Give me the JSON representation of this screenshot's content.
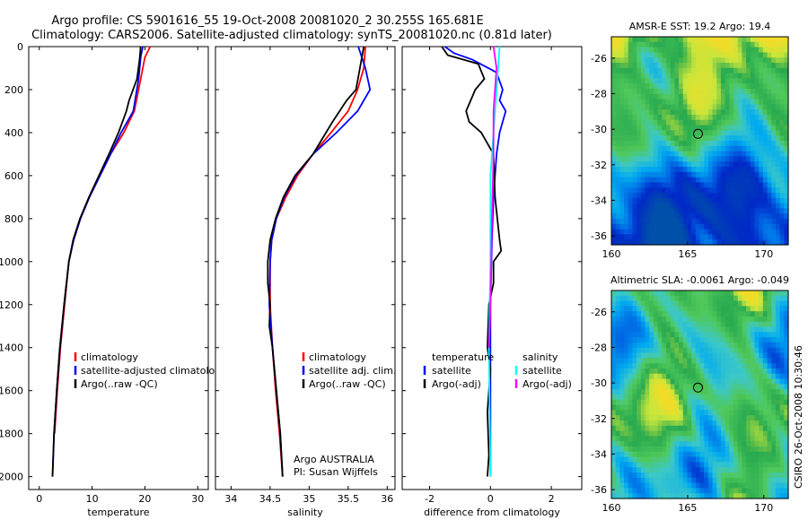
{
  "title": {
    "line1": "Argo profile: CS 5901616_55 19-Oct-2008 20081020_2 30.255S 165.681E",
    "line2": "Climatology: CARS2006. Satellite-adjusted climatology: synTS_20081020.nc (0.81d later)"
  },
  "colors": {
    "red": "#ff0000",
    "blue": "#0000ff",
    "black": "#000000",
    "cyan": "#00ffff",
    "magenta": "#ff00ff"
  },
  "chart_data": [
    {
      "type": "line",
      "name": "temperature",
      "xlabel": "temperature",
      "xlim": [
        -2,
        32
      ],
      "ylim": [
        2060,
        0
      ],
      "xticks": [
        0,
        10,
        20,
        30
      ],
      "yticks": [
        0,
        200,
        400,
        600,
        800,
        1000,
        1200,
        1400,
        1600,
        1800,
        2000
      ],
      "legend": [
        "climatology",
        "satellite-adjusted climatology",
        "Argo(..raw -QC)"
      ],
      "series": [
        {
          "name": "climatology",
          "color": "red",
          "points": [
            [
              21,
              0
            ],
            [
              20,
              50
            ],
            [
              19.2,
              150
            ],
            [
              18,
              300
            ],
            [
              16,
              400
            ],
            [
              13.5,
              500
            ],
            [
              11.5,
              600
            ],
            [
              9.5,
              700
            ],
            [
              7.8,
              800
            ],
            [
              6.5,
              900
            ],
            [
              5.6,
              1000
            ],
            [
              4.8,
              1200
            ],
            [
              4.0,
              1400
            ],
            [
              3.4,
              1600
            ],
            [
              2.9,
              1800
            ]
          ]
        },
        {
          "name": "satellite-adjusted climatology",
          "color": "blue",
          "points": [
            [
              19.6,
              0
            ],
            [
              19.2,
              50
            ],
            [
              18.8,
              150
            ],
            [
              17.8,
              300
            ],
            [
              15.5,
              400
            ],
            [
              13.5,
              500
            ],
            [
              11.5,
              600
            ],
            [
              9.5,
              700
            ],
            [
              7.8,
              800
            ],
            [
              6.5,
              900
            ],
            [
              5.6,
              1000
            ],
            [
              4.7,
              1200
            ],
            [
              3.9,
              1400
            ],
            [
              3.3,
              1600
            ],
            [
              2.8,
              1800
            ],
            [
              2.5,
              2000
            ]
          ]
        },
        {
          "name": "Argo(..raw -QC)",
          "color": "black",
          "points": [
            [
              19.2,
              0
            ],
            [
              19.0,
              60
            ],
            [
              18.5,
              150
            ],
            [
              17.0,
              250
            ],
            [
              16.5,
              300
            ],
            [
              15.0,
              400
            ],
            [
              13.2,
              500
            ],
            [
              11.3,
              600
            ],
            [
              9.4,
              700
            ],
            [
              7.7,
              800
            ],
            [
              6.4,
              900
            ],
            [
              5.6,
              1000
            ],
            [
              4.7,
              1200
            ],
            [
              3.9,
              1400
            ],
            [
              3.3,
              1600
            ],
            [
              2.8,
              1800
            ],
            [
              2.5,
              2000
            ]
          ]
        }
      ]
    },
    {
      "type": "line",
      "name": "salinity",
      "xlabel": "salinity",
      "xlim": [
        33.8,
        36.1
      ],
      "ylim": [
        2060,
        0
      ],
      "xticks": [
        34,
        34.5,
        35,
        35.5,
        36
      ],
      "legend": [
        "climatology",
        "satellite adj. clim.",
        "Argo(..raw -QC)"
      ],
      "series": [
        {
          "name": "climatology",
          "color": "red",
          "points": [
            [
              35.72,
              0
            ],
            [
              35.7,
              100
            ],
            [
              35.62,
              200
            ],
            [
              35.5,
              300
            ],
            [
              35.28,
              400
            ],
            [
              35.05,
              500
            ],
            [
              34.85,
              600
            ],
            [
              34.7,
              700
            ],
            [
              34.58,
              800
            ],
            [
              34.52,
              900
            ],
            [
              34.5,
              1000
            ],
            [
              34.5,
              1200
            ],
            [
              34.53,
              1400
            ],
            [
              34.57,
              1600
            ],
            [
              34.62,
              1800
            ],
            [
              34.66,
              2000
            ]
          ]
        },
        {
          "name": "satellite adj. clim.",
          "color": "blue",
          "points": [
            [
              35.63,
              0
            ],
            [
              35.72,
              100
            ],
            [
              35.78,
              200
            ],
            [
              35.62,
              300
            ],
            [
              35.35,
              400
            ],
            [
              35.05,
              500
            ],
            [
              34.83,
              600
            ],
            [
              34.68,
              700
            ],
            [
              34.58,
              800
            ],
            [
              34.52,
              900
            ],
            [
              34.5,
              1000
            ],
            [
              34.49,
              1200
            ],
            [
              34.53,
              1400
            ],
            [
              34.58,
              1600
            ],
            [
              34.63,
              1800
            ],
            [
              34.66,
              2000
            ]
          ]
        },
        {
          "name": "Argo(..raw -QC)",
          "color": "black",
          "points": [
            [
              35.7,
              0
            ],
            [
              35.65,
              100
            ],
            [
              35.6,
              200
            ],
            [
              35.48,
              250
            ],
            [
              35.3,
              350
            ],
            [
              35.05,
              500
            ],
            [
              34.82,
              600
            ],
            [
              34.67,
              700
            ],
            [
              34.57,
              800
            ],
            [
              34.5,
              900
            ],
            [
              34.47,
              1000
            ],
            [
              34.47,
              1100
            ],
            [
              34.5,
              1200
            ],
            [
              34.49,
              1300
            ],
            [
              34.53,
              1400
            ],
            [
              34.58,
              1600
            ],
            [
              34.63,
              1800
            ],
            [
              34.66,
              2000
            ]
          ]
        }
      ]
    },
    {
      "type": "line",
      "name": "difference",
      "xlabel": "difference from climatology",
      "xlim": [
        -2.9,
        3.0
      ],
      "ylim": [
        2060,
        0
      ],
      "xticks": [
        -2,
        0,
        2
      ],
      "legend_left": [
        "temperature",
        "satellite",
        "Argo(-adj)"
      ],
      "legend_right": [
        "salinity",
        "satellite",
        "Argo(-adj)"
      ],
      "series": [
        {
          "name": "temperature satellite",
          "color": "blue",
          "points": [
            [
              -1.5,
              0
            ],
            [
              -1.2,
              30
            ],
            [
              -0.6,
              60
            ],
            [
              0.2,
              120
            ],
            [
              0.4,
              200
            ],
            [
              0.3,
              250
            ],
            [
              0.5,
              300
            ],
            [
              0.3,
              400
            ],
            [
              0.2,
              500
            ],
            [
              0.1,
              700
            ],
            [
              0.05,
              900
            ],
            [
              0.0,
              1200
            ],
            [
              0.0,
              2000
            ]
          ]
        },
        {
          "name": "temperature Argo(-adj)",
          "color": "black",
          "points": [
            [
              -1.6,
              0
            ],
            [
              -1.4,
              40
            ],
            [
              -0.4,
              80
            ],
            [
              -0.2,
              150
            ],
            [
              -0.5,
              200
            ],
            [
              -0.8,
              300
            ],
            [
              -0.7,
              350
            ],
            [
              -0.3,
              400
            ],
            [
              -0.1,
              450
            ],
            [
              0.1,
              500
            ],
            [
              0.15,
              700
            ],
            [
              0.3,
              900
            ],
            [
              0.35,
              950
            ],
            [
              0.1,
              1000
            ],
            [
              0.1,
              1100
            ],
            [
              -0.05,
              1200
            ],
            [
              -0.1,
              1400
            ],
            [
              0.0,
              1500
            ],
            [
              -0.1,
              1700
            ],
            [
              -0.05,
              1900
            ],
            [
              -0.1,
              2000
            ]
          ]
        },
        {
          "name": "salinity satellite",
          "color": "cyan",
          "points": [
            [
              0.3,
              0
            ],
            [
              0.2,
              200
            ],
            [
              0.1,
              400
            ],
            [
              0.0,
              600
            ],
            [
              0.0,
              1000
            ],
            [
              -0.05,
              1400
            ],
            [
              0.0,
              2000
            ]
          ]
        },
        {
          "name": "salinity Argo(-adj)",
          "color": "magenta",
          "points": [
            [
              0.1,
              0
            ],
            [
              0.2,
              100
            ],
            [
              0.1,
              300
            ],
            [
              0.1,
              500
            ],
            [
              0.05,
              800
            ],
            [
              0.0,
              1200
            ],
            [
              -0.05,
              1400
            ]
          ]
        }
      ]
    },
    {
      "type": "heatmap",
      "name": "amsr-sst-map",
      "title": "AMSR-E SST: 19.2  Argo: 19.4",
      "xticks": [
        160,
        165,
        170
      ],
      "yticks": [
        -26,
        -28,
        -30,
        -32,
        -34,
        -36
      ],
      "xlim": [
        160,
        171.6
      ],
      "ylim": [
        -24.8,
        -36.5
      ],
      "marker": [
        165.68,
        -30.26
      ]
    },
    {
      "type": "heatmap",
      "name": "altimetric-sla-map",
      "title": "Altimetric SLA: -0.0061  Argo: -0.049",
      "xticks": [
        160,
        165,
        170
      ],
      "yticks": [
        -26,
        -28,
        -30,
        -32,
        -34,
        -36
      ],
      "xlim": [
        160,
        171.6
      ],
      "ylim": [
        -24.8,
        -36.5
      ],
      "marker": [
        165.68,
        -30.26
      ]
    }
  ],
  "annotation": {
    "line1": "Argo AUSTRALIA",
    "line2": "PI: Susan Wijffels"
  },
  "credit": "CSIRO 26-Oct-2008 10:30:46"
}
